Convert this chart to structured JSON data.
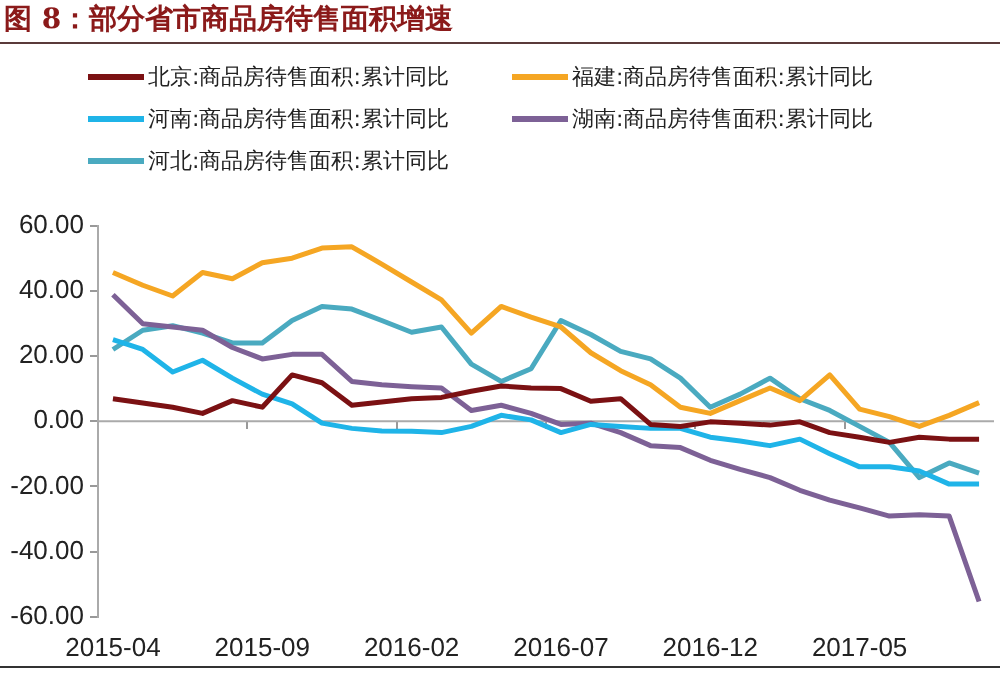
{
  "chart_data": {
    "type": "line",
    "title": "图 8：部分省市商品房待售面积增速",
    "categories": [
      "2015-04",
      null,
      null,
      null,
      null,
      "2015-09",
      null,
      null,
      null,
      null,
      "2016-02",
      null,
      null,
      null,
      null,
      "2016-07",
      null,
      null,
      null,
      null,
      "2016-12",
      null,
      null,
      null,
      null,
      "2017-05",
      null,
      null,
      null,
      null
    ],
    "series": [
      {
        "name": "北京:商品房待售面积:累计同比",
        "color": "#7b1113",
        "values": [
          6.9,
          5.6,
          4.3,
          2.4,
          6.3,
          4.3,
          14.2,
          11.8,
          4.9,
          5.9,
          6.9,
          7.3,
          9.2,
          10.8,
          10.2,
          10,
          6.1,
          6.9,
          -1,
          -1.6,
          -0.2,
          -0.6,
          -1.2,
          -0.2,
          -3.5,
          -4.9,
          -6.5,
          -4.9,
          -5.5,
          -5.5
        ]
      },
      {
        "name": "福建:商品房待售面积:累计同比",
        "color": "#f5a623",
        "values": [
          45.6,
          41.7,
          38.4,
          45.6,
          43.7,
          48.6,
          50,
          53.1,
          53.5,
          48.2,
          42.7,
          37.2,
          27,
          35.2,
          31.9,
          28.9,
          21,
          15.5,
          11.2,
          4.3,
          2.4,
          6.3,
          10.2,
          6.3,
          14.2,
          3.7,
          1.4,
          -1.6,
          1.8,
          5.7
        ]
      },
      {
        "name": "河南:商品房待售面积:累计同比",
        "color": "#1fb4e8",
        "values": [
          25,
          22,
          15.1,
          18.7,
          13.2,
          8.3,
          5.3,
          -0.6,
          -2.2,
          -3,
          -3.1,
          -3.5,
          -1.6,
          1.8,
          0.4,
          -3.5,
          -1,
          -1.6,
          -2.2,
          -2.2,
          -4.9,
          -6.1,
          -7.5,
          -5.5,
          -10,
          -14,
          -14,
          -15.3,
          -19.3,
          -19.3
        ]
      },
      {
        "name": "湖南:商品房待售面积:累计同比",
        "color": "#7d6196",
        "values": [
          38.8,
          29.9,
          28.9,
          27.9,
          22.6,
          19.1,
          20.5,
          20.5,
          12.2,
          11.2,
          10.6,
          10.2,
          3.3,
          4.9,
          2.4,
          -1,
          -0.6,
          -3.5,
          -7.5,
          -8.1,
          -12,
          -14.8,
          -17.3,
          -21.2,
          -24.2,
          -26.6,
          -29.1,
          -28.7,
          -29.1,
          -55.3
        ]
      },
      {
        "name": "河北:商品房待售面积:累计同比",
        "color": "#4aaac0",
        "values": [
          22,
          27.9,
          29.3,
          27,
          24,
          24,
          30.9,
          35.2,
          34.4,
          30.9,
          27.3,
          28.9,
          17.5,
          12.2,
          16.1,
          30.9,
          26.6,
          21.4,
          19.1,
          13.2,
          4.3,
          8.3,
          13.2,
          6.9,
          3.3,
          -1.6,
          -6.5,
          -17.3,
          -12.8,
          -15.9
        ]
      }
    ],
    "ylim": [
      -60,
      60
    ],
    "yticks": [
      {
        "value": -60,
        "label": "-60.00"
      },
      {
        "value": -40,
        "label": "-40.00"
      },
      {
        "value": -20,
        "label": "-20.00"
      },
      {
        "value": 0,
        "label": "0.00"
      },
      {
        "value": 20,
        "label": "20.00"
      },
      {
        "value": 40,
        "label": "40.00"
      },
      {
        "value": 60,
        "label": "60.00"
      }
    ],
    "ref_lines": [
      {
        "axis": "y",
        "value": 0,
        "color": "#aaaaaa"
      }
    ],
    "grid": false,
    "legend": "top",
    "marker": "none",
    "line_style": "solid"
  }
}
